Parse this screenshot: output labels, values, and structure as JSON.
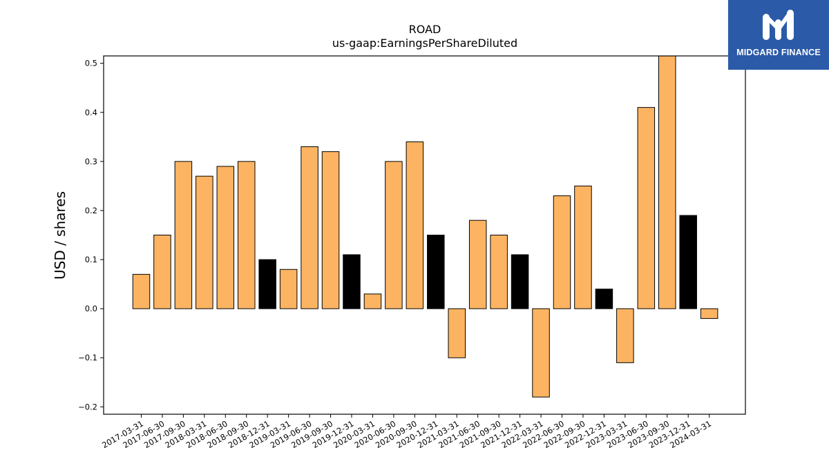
{
  "brand": {
    "name": "MIDGARD FINANCE",
    "logo_icon": "midgard-m-icon",
    "bg_color": "#2b5aa8"
  },
  "chart_data": {
    "type": "bar",
    "title": "ROAD",
    "subtitle": "us-gaap:EarningsPerShareDiluted",
    "ylabel": "USD / shares",
    "xlabel": "",
    "ylim": [
      -0.215,
      0.515
    ],
    "yticks": [
      -0.2,
      -0.1,
      0.0,
      0.1,
      0.2,
      0.3,
      0.4,
      0.5
    ],
    "ytick_labels": [
      "−0.2",
      "−0.1",
      "0.0",
      "0.1",
      "0.2",
      "0.3",
      "0.4",
      "0.5"
    ],
    "grid": false,
    "colors": {
      "quarter": "#fdb462",
      "fiscal_year_end": "#000000",
      "edge": "#000000"
    },
    "categories": [
      "2017-03-31",
      "2017-06-30",
      "2017-09-30",
      "2018-03-31",
      "2018-06-30",
      "2018-09-30",
      "2018-12-31",
      "2019-03-31",
      "2019-06-30",
      "2019-09-30",
      "2019-12-31",
      "2020-03-31",
      "2020-06-30",
      "2020-09-30",
      "2020-12-31",
      "2021-03-31",
      "2021-06-30",
      "2021-09-30",
      "2021-12-31",
      "2022-03-31",
      "2022-06-30",
      "2022-09-30",
      "2022-12-31",
      "2023-03-31",
      "2023-06-30",
      "2023-09-30",
      "2023-12-31",
      "2024-03-31"
    ],
    "values": [
      0.07,
      0.15,
      0.3,
      0.27,
      0.29,
      0.3,
      0.1,
      0.08,
      0.33,
      0.32,
      0.11,
      0.03,
      0.3,
      0.34,
      0.15,
      -0.1,
      0.18,
      0.15,
      0.11,
      -0.18,
      0.23,
      0.25,
      0.04,
      -0.11,
      0.41,
      0.52,
      0.19,
      -0.02
    ],
    "bar_kind": [
      "q",
      "q",
      "q",
      "q",
      "q",
      "q",
      "fy",
      "q",
      "q",
      "q",
      "fy",
      "q",
      "q",
      "q",
      "fy",
      "q",
      "q",
      "q",
      "fy",
      "q",
      "q",
      "q",
      "fy",
      "q",
      "q",
      "q",
      "fy",
      "q"
    ]
  }
}
